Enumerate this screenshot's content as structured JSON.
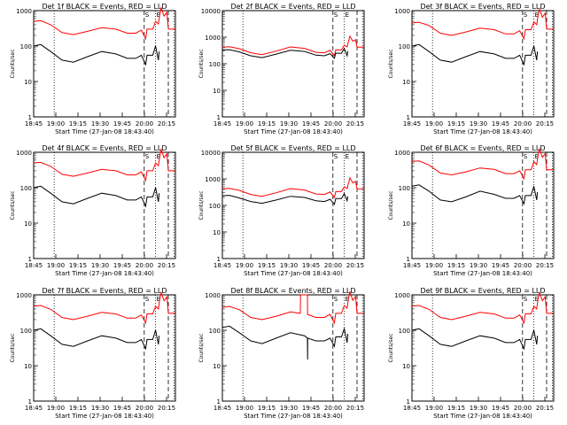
{
  "chart_data": [
    {
      "type": "line",
      "title": "Det 1f BLACK = Events, RED = LLD",
      "xlabel": "Start Time (27-Jan-08 18:43:40)",
      "ylabel": "Counts/sec",
      "x_ticks": [
        "18:45",
        "19:00",
        "19:15",
        "19:30",
        "19:45",
        "20:00",
        "20:15"
      ],
      "y_ticks": [
        "1",
        "10",
        "100",
        "1000"
      ],
      "y_scale": "log",
      "ylim": [
        1,
        1000
      ],
      "markers": [
        "S",
        "E"
      ],
      "series": [
        {
          "color": "#ff0000",
          "x": [
            0,
            0.05,
            0.12,
            0.2,
            0.28,
            0.38,
            0.48,
            0.58,
            0.66,
            0.72,
            0.76,
            0.79,
            0.8,
            0.84,
            0.86,
            0.88,
            0.89,
            0.9,
            0.92,
            0.94,
            0.95,
            0.97,
            1.0
          ],
          "y": [
            500,
            520,
            400,
            240,
            210,
            260,
            330,
            300,
            230,
            230,
            280,
            160,
            300,
            300,
            500,
            420,
            800,
            1200,
            700,
            900,
            300,
            300,
            300
          ]
        },
        {
          "color": "#000000",
          "x": [
            0,
            0.05,
            0.12,
            0.2,
            0.28,
            0.38,
            0.48,
            0.58,
            0.66,
            0.72,
            0.76,
            0.79,
            0.8,
            0.84,
            0.86,
            0.88,
            0.885
          ],
          "y": [
            100,
            110,
            70,
            40,
            35,
            50,
            70,
            60,
            45,
            45,
            55,
            30,
            55,
            55,
            100,
            40,
            70
          ]
        }
      ]
    },
    {
      "type": "line",
      "title": "Det 2f BLACK = Events, RED = LLD",
      "xlabel": "Start Time (27-Jan-08 18:43:40)",
      "ylabel": "Counts/sec",
      "x_ticks": [
        "18:45",
        "19:00",
        "19:15",
        "19:30",
        "19:45",
        "20:00",
        "20:15"
      ],
      "y_ticks": [
        "1",
        "10",
        "100",
        "1000",
        "10000"
      ],
      "y_scale": "log",
      "ylim": [
        1,
        10000
      ],
      "markers": [
        "S",
        "E"
      ],
      "series": [
        {
          "color": "#ff0000",
          "x": [
            0,
            0.05,
            0.12,
            0.2,
            0.28,
            0.38,
            0.48,
            0.58,
            0.66,
            0.72,
            0.76,
            0.79,
            0.8,
            0.84,
            0.86,
            0.88,
            0.89,
            0.9,
            0.92,
            0.94,
            0.95,
            0.97,
            1.0
          ],
          "y": [
            420,
            440,
            370,
            260,
            220,
            300,
            430,
            380,
            270,
            260,
            320,
            200,
            330,
            330,
            500,
            430,
            700,
            1100,
            700,
            800,
            420,
            420,
            420
          ]
        },
        {
          "color": "#000000",
          "x": [
            0,
            0.05,
            0.12,
            0.2,
            0.28,
            0.38,
            0.48,
            0.58,
            0.66,
            0.72,
            0.76,
            0.79,
            0.8,
            0.84,
            0.86,
            0.88,
            0.885
          ],
          "y": [
            330,
            340,
            280,
            200,
            170,
            230,
            320,
            290,
            210,
            200,
            240,
            160,
            250,
            250,
            380,
            200,
            300
          ]
        }
      ]
    },
    {
      "type": "line",
      "title": "Det 3f BLACK = Events, RED = LLD",
      "xlabel": "Start Time (27-Jan-08 18:43:40)",
      "ylabel": "Counts/sec",
      "x_ticks": [
        "18:45",
        "19:00",
        "19:15",
        "19:30",
        "19:45",
        "20:00",
        "20:15"
      ],
      "y_ticks": [
        "1",
        "10",
        "100",
        "1000"
      ],
      "y_scale": "log",
      "ylim": [
        1,
        1000
      ],
      "markers": [
        "S",
        "E"
      ],
      "series": [
        {
          "color": "#ff0000",
          "x": [
            0,
            0.05,
            0.12,
            0.2,
            0.28,
            0.38,
            0.48,
            0.58,
            0.66,
            0.72,
            0.76,
            0.79,
            0.8,
            0.84,
            0.86,
            0.88,
            0.89,
            0.9,
            0.92,
            0.94,
            0.95,
            0.97,
            1.0
          ],
          "y": [
            450,
            470,
            380,
            230,
            200,
            250,
            320,
            290,
            220,
            220,
            270,
            160,
            290,
            290,
            480,
            400,
            750,
            1100,
            650,
            850,
            300,
            300,
            300
          ]
        },
        {
          "color": "#000000",
          "x": [
            0,
            0.05,
            0.12,
            0.2,
            0.28,
            0.38,
            0.48,
            0.58,
            0.66,
            0.72,
            0.76,
            0.79,
            0.8,
            0.84,
            0.86,
            0.88,
            0.885
          ],
          "y": [
            100,
            110,
            70,
            40,
            35,
            50,
            70,
            60,
            45,
            45,
            55,
            30,
            55,
            55,
            100,
            40,
            70
          ]
        }
      ]
    },
    {
      "type": "line",
      "title": "Det 4f BLACK = Events, RED = LLD",
      "xlabel": "Start Time (27-Jan-08 18:43:40)",
      "ylabel": "Counts/sec",
      "x_ticks": [
        "18:45",
        "19:00",
        "19:15",
        "19:30",
        "19:45",
        "20:00",
        "20:15"
      ],
      "y_ticks": [
        "1",
        "10",
        "100",
        "1000"
      ],
      "y_scale": "log",
      "ylim": [
        1,
        1000
      ],
      "markers": [
        "S",
        "E"
      ],
      "series": [
        {
          "color": "#ff0000",
          "x": [
            0,
            0.05,
            0.12,
            0.2,
            0.28,
            0.38,
            0.48,
            0.58,
            0.66,
            0.72,
            0.76,
            0.79,
            0.8,
            0.84,
            0.86,
            0.88,
            0.89,
            0.9,
            0.92,
            0.94,
            0.95,
            0.97,
            1.0
          ],
          "y": [
            500,
            520,
            400,
            240,
            210,
            260,
            330,
            300,
            230,
            230,
            280,
            160,
            300,
            300,
            500,
            420,
            800,
            1200,
            700,
            900,
            300,
            300,
            300
          ]
        },
        {
          "color": "#000000",
          "x": [
            0,
            0.05,
            0.12,
            0.2,
            0.28,
            0.38,
            0.48,
            0.58,
            0.66,
            0.72,
            0.76,
            0.79,
            0.8,
            0.84,
            0.86,
            0.88,
            0.885
          ],
          "y": [
            100,
            110,
            70,
            40,
            35,
            50,
            70,
            60,
            45,
            45,
            55,
            30,
            55,
            55,
            100,
            40,
            70
          ]
        }
      ]
    },
    {
      "type": "line",
      "title": "Det 5f BLACK = Events, RED = LLD",
      "xlabel": "Start Time (27-Jan-08 18:43:40)",
      "ylabel": "Counts/sec",
      "x_ticks": [
        "18:45",
        "19:00",
        "19:15",
        "19:30",
        "19:45",
        "20:00",
        "20:15"
      ],
      "y_ticks": [
        "1",
        "10",
        "100",
        "1000",
        "10000"
      ],
      "y_scale": "log",
      "ylim": [
        1,
        10000
      ],
      "markers": [
        "S",
        "E"
      ],
      "series": [
        {
          "color": "#ff0000",
          "x": [
            0,
            0.05,
            0.12,
            0.2,
            0.28,
            0.38,
            0.48,
            0.58,
            0.66,
            0.72,
            0.76,
            0.79,
            0.8,
            0.84,
            0.86,
            0.88,
            0.89,
            0.9,
            0.92,
            0.94,
            0.95,
            0.97,
            1.0
          ],
          "y": [
            420,
            440,
            370,
            260,
            220,
            300,
            430,
            380,
            270,
            260,
            320,
            200,
            330,
            330,
            500,
            430,
            700,
            1100,
            700,
            800,
            420,
            420,
            420
          ]
        },
        {
          "color": "#000000",
          "x": [
            0,
            0.05,
            0.12,
            0.2,
            0.28,
            0.38,
            0.48,
            0.58,
            0.66,
            0.72,
            0.76,
            0.79,
            0.8,
            0.84,
            0.86,
            0.88,
            0.885
          ],
          "y": [
            230,
            240,
            190,
            140,
            120,
            160,
            220,
            200,
            150,
            140,
            170,
            110,
            180,
            180,
            280,
            150,
            220
          ]
        }
      ]
    },
    {
      "type": "line",
      "title": "Det 6f BLACK = Events, RED = LLD",
      "xlabel": "Start Time (27-Jan-08 18:43:40)",
      "ylabel": "Counts/sec",
      "x_ticks": [
        "18:45",
        "19:00",
        "19:15",
        "19:30",
        "19:45",
        "20:00",
        "20:15"
      ],
      "y_ticks": [
        "1",
        "10",
        "100",
        "1000"
      ],
      "y_scale": "log",
      "ylim": [
        1,
        1000
      ],
      "markers": [
        "S",
        "E"
      ],
      "series": [
        {
          "color": "#ff0000",
          "x": [
            0,
            0.05,
            0.12,
            0.2,
            0.28,
            0.38,
            0.48,
            0.58,
            0.66,
            0.72,
            0.76,
            0.79,
            0.8,
            0.84,
            0.86,
            0.88,
            0.89,
            0.9,
            0.92,
            0.94,
            0.95,
            0.97,
            1.0
          ],
          "y": [
            550,
            570,
            440,
            260,
            230,
            280,
            360,
            330,
            250,
            250,
            300,
            180,
            320,
            320,
            540,
            450,
            850,
            1250,
            720,
            920,
            320,
            320,
            320
          ]
        },
        {
          "color": "#000000",
          "x": [
            0,
            0.05,
            0.12,
            0.2,
            0.28,
            0.38,
            0.48,
            0.58,
            0.66,
            0.72,
            0.76,
            0.79,
            0.8,
            0.84,
            0.86,
            0.88,
            0.885
          ],
          "y": [
            110,
            120,
            80,
            45,
            40,
            55,
            80,
            65,
            50,
            50,
            60,
            35,
            60,
            60,
            110,
            45,
            75
          ]
        }
      ]
    },
    {
      "type": "line",
      "title": "Det 7f BLACK = Events, RED = LLD",
      "xlabel": "Start Time (27-Jan-08 18:43:40)",
      "ylabel": "Counts/sec",
      "x_ticks": [
        "18:45",
        "19:00",
        "19:15",
        "19:30",
        "19:45",
        "20:00",
        "20:15"
      ],
      "y_ticks": [
        "1",
        "10",
        "100",
        "1000"
      ],
      "y_scale": "log",
      "ylim": [
        1,
        1000
      ],
      "markers": [
        "S",
        "E"
      ],
      "series": [
        {
          "color": "#ff0000",
          "x": [
            0,
            0.05,
            0.12,
            0.2,
            0.28,
            0.38,
            0.48,
            0.58,
            0.66,
            0.72,
            0.76,
            0.79,
            0.8,
            0.84,
            0.86,
            0.88,
            0.89,
            0.9,
            0.92,
            0.94,
            0.95,
            0.97,
            1.0
          ],
          "y": [
            480,
            500,
            390,
            230,
            200,
            250,
            320,
            290,
            220,
            220,
            270,
            160,
            290,
            290,
            480,
            400,
            780,
            1150,
            680,
            880,
            300,
            300,
            300
          ]
        },
        {
          "color": "#000000",
          "x": [
            0,
            0.05,
            0.12,
            0.2,
            0.28,
            0.38,
            0.48,
            0.58,
            0.66,
            0.72,
            0.76,
            0.79,
            0.8,
            0.84,
            0.86,
            0.88,
            0.885
          ],
          "y": [
            100,
            110,
            70,
            40,
            35,
            50,
            70,
            60,
            45,
            45,
            55,
            30,
            55,
            55,
            100,
            40,
            70
          ]
        }
      ]
    },
    {
      "type": "line",
      "title": "Det 8f BLACK = Events, RED = LLD",
      "xlabel": "Start Time (27-Jan-08 18:43:40)",
      "ylabel": "Counts/sec",
      "x_ticks": [
        "18:45",
        "19:00",
        "19:15",
        "19:30",
        "19:45",
        "20:00",
        "20:15"
      ],
      "y_ticks": [
        "1",
        "10",
        "100",
        "1000"
      ],
      "y_scale": "log",
      "ylim": [
        1,
        1000
      ],
      "markers": [
        "S",
        "E"
      ],
      "series": [
        {
          "color": "#ff0000",
          "x": [
            0,
            0.05,
            0.12,
            0.2,
            0.28,
            0.38,
            0.48,
            0.55,
            0.551,
            0.58,
            0.6,
            0.601,
            0.66,
            0.72,
            0.76,
            0.79,
            0.8,
            0.84,
            0.86,
            0.88,
            0.89,
            0.9,
            0.92,
            0.94,
            0.95,
            0.97,
            1.0
          ],
          "y": [
            450,
            470,
            380,
            230,
            200,
            250,
            330,
            300,
            1000,
            1000,
            1000,
            280,
            230,
            230,
            280,
            160,
            300,
            300,
            500,
            420,
            800,
            1200,
            700,
            900,
            300,
            300,
            300
          ]
        },
        {
          "color": "#000000",
          "x": [
            0,
            0.05,
            0.12,
            0.2,
            0.28,
            0.38,
            0.48,
            0.58,
            0.6,
            0.601,
            0.602,
            0.66,
            0.72,
            0.76,
            0.79,
            0.8,
            0.84,
            0.86,
            0.88,
            0.885
          ],
          "y": [
            120,
            130,
            85,
            50,
            42,
            60,
            85,
            70,
            60,
            15,
            60,
            50,
            50,
            60,
            35,
            65,
            65,
            110,
            45,
            80
          ]
        }
      ]
    },
    {
      "type": "line",
      "title": "Det 9f BLACK = Events, RED = LLD",
      "xlabel": "Start Time (27-Jan-08 18:43:40)",
      "ylabel": "Counts/sec",
      "x_ticks": [
        "18:45",
        "19:00",
        "19:15",
        "19:30",
        "19:45",
        "20:00",
        "20:15"
      ],
      "y_ticks": [
        "1",
        "10",
        "100",
        "1000"
      ],
      "y_scale": "log",
      "ylim": [
        1,
        1000
      ],
      "markers": [
        "S",
        "E"
      ],
      "series": [
        {
          "color": "#ff0000",
          "x": [
            0,
            0.05,
            0.12,
            0.2,
            0.28,
            0.38,
            0.48,
            0.58,
            0.66,
            0.72,
            0.76,
            0.79,
            0.8,
            0.84,
            0.86,
            0.88,
            0.89,
            0.9,
            0.92,
            0.94,
            0.95,
            0.97,
            1.0
          ],
          "y": [
            480,
            500,
            390,
            230,
            200,
            250,
            320,
            290,
            220,
            220,
            270,
            160,
            290,
            290,
            480,
            400,
            780,
            1150,
            680,
            880,
            300,
            300,
            300
          ]
        },
        {
          "color": "#000000",
          "x": [
            0,
            0.05,
            0.12,
            0.2,
            0.28,
            0.38,
            0.48,
            0.58,
            0.66,
            0.72,
            0.76,
            0.79,
            0.8,
            0.84,
            0.86,
            0.88,
            0.885
          ],
          "y": [
            100,
            110,
            70,
            40,
            35,
            50,
            70,
            60,
            45,
            45,
            55,
            30,
            55,
            55,
            100,
            40,
            70
          ]
        }
      ]
    }
  ]
}
